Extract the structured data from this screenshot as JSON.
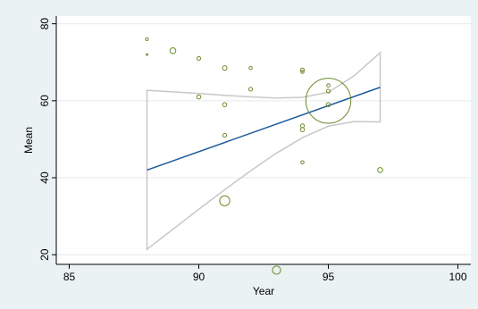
{
  "chart_data": {
    "type": "scatter",
    "title": "",
    "xlabel": "Year",
    "ylabel": "Mean",
    "xlim": [
      84.5,
      100.5
    ],
    "ylim": [
      17.5,
      82
    ],
    "x_ticks": [
      85,
      90,
      95,
      100
    ],
    "y_ticks": [
      20,
      40,
      60,
      80
    ],
    "grid": "horizontal",
    "legend": "none",
    "colors": {
      "background": "#eaf2f3",
      "plot_area": "#ffffff",
      "grid": "#e4ebeb",
      "points": "#6b8a2a",
      "fit_line": "#1f5a9c",
      "ci_band": "#c8c8c8"
    },
    "points": [
      {
        "x": 88,
        "y": 76,
        "weight": 0.5
      },
      {
        "x": 88,
        "y": 72,
        "weight": 0.2
      },
      {
        "x": 89,
        "y": 73,
        "weight": 2
      },
      {
        "x": 90,
        "y": 71,
        "weight": 0.8
      },
      {
        "x": 90,
        "y": 61,
        "weight": 1
      },
      {
        "x": 91,
        "y": 68.5,
        "weight": 1.2
      },
      {
        "x": 91,
        "y": 59,
        "weight": 1
      },
      {
        "x": 91,
        "y": 51,
        "weight": 0.8
      },
      {
        "x": 91,
        "y": 34,
        "weight": 6
      },
      {
        "x": 92,
        "y": 68.5,
        "weight": 0.6
      },
      {
        "x": 92,
        "y": 63,
        "weight": 0.8
      },
      {
        "x": 93,
        "y": 16,
        "weight": 4
      },
      {
        "x": 94,
        "y": 68,
        "weight": 0.8
      },
      {
        "x": 94,
        "y": 67.5,
        "weight": 0.6
      },
      {
        "x": 94,
        "y": 53.5,
        "weight": 0.8
      },
      {
        "x": 94,
        "y": 52.5,
        "weight": 1
      },
      {
        "x": 94,
        "y": 44,
        "weight": 0.6
      },
      {
        "x": 95,
        "y": 64,
        "weight": 0.6
      },
      {
        "x": 95,
        "y": 62.5,
        "weight": 0.8
      },
      {
        "x": 95,
        "y": 59,
        "weight": 1
      },
      {
        "x": 95,
        "y": 60,
        "weight": 120
      },
      {
        "x": 97,
        "y": 42,
        "weight": 1.5
      }
    ],
    "fit_line": {
      "x": [
        88,
        97
      ],
      "y": [
        42,
        63.5
      ]
    },
    "ci_band": {
      "x": [
        88,
        89,
        90,
        91,
        92,
        93,
        94,
        95,
        96,
        97
      ],
      "upper": [
        62.7,
        62.3,
        61.9,
        61.4,
        61.0,
        60.7,
        60.9,
        62.2,
        66.5,
        72.5
      ],
      "lower": [
        21.4,
        26.6,
        31.8,
        36.9,
        41.8,
        46.4,
        50.4,
        53.4,
        54.6,
        54.5
      ]
    }
  }
}
